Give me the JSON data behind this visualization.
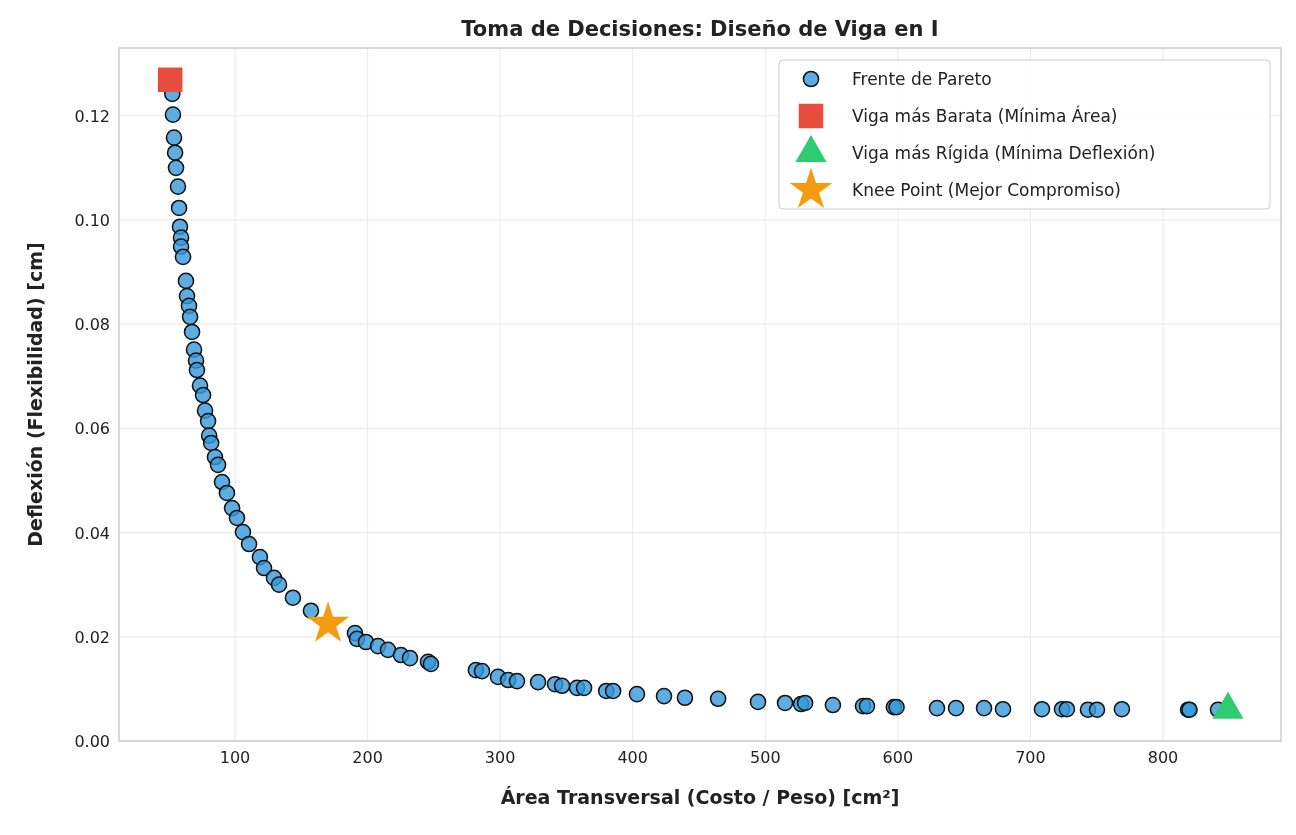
{
  "chart_data": {
    "type": "scatter",
    "title": "Toma de Decisiones: Diseño de Viga en I",
    "xlabel": "Área Transversal (Costo / Peso) [cm²]",
    "ylabel": "Deflexión (Flexibilidad) [cm]",
    "xlim": [
      12.5,
      889
    ],
    "ylim": [
      0,
      0.133
    ],
    "xticks": [
      100,
      200,
      300,
      400,
      500,
      600,
      700,
      800
    ],
    "yticks": [
      {
        "value": 0,
        "label": "0.00"
      },
      {
        "value": 0.02,
        "label": "0.02"
      },
      {
        "value": 0.04,
        "label": "0.04"
      },
      {
        "value": 0.06,
        "label": "0.06"
      },
      {
        "value": 0.08,
        "label": "0.08"
      },
      {
        "value": 0.1,
        "label": "0.10"
      },
      {
        "value": 0.12,
        "label": "0.12"
      }
    ],
    "grid": true,
    "legend": "top right",
    "series": [
      {
        "name": "Frente de Pareto",
        "color": "#3498db",
        "marker": "circle",
        "x": [
          52.7,
          53.2,
          54.0,
          54.8,
          55.5,
          57.0,
          57.8,
          58.5,
          59.3,
          59.3,
          60.8,
          63.0,
          63.8,
          65.3,
          66.1,
          67.6,
          69.1,
          70.6,
          71.3,
          73.6,
          75.9,
          77.4,
          79.7,
          80.5,
          82.0,
          84.9,
          87.2,
          90.2,
          93.9,
          97.8,
          101.5,
          106.0,
          110.6,
          118.8,
          121.9,
          129.4,
          133.2,
          143.7,
          157.3,
          190.5,
          192.0,
          198.8,
          207.9,
          215.4,
          225.2,
          232.0,
          245.6,
          247.8,
          281.7,
          286.3,
          298.4,
          306,
          312.7,
          328.6,
          341.4,
          346.7,
          358,
          363.3,
          380,
          385.2,
          403.2,
          423.6,
          439.4,
          464.4,
          494.5,
          514.9,
          527,
          530,
          551,
          573.7,
          576.7,
          597,
          599,
          629.5,
          643.9,
          665,
          679.3,
          708.7,
          723.8,
          727.5,
          743.4,
          750.2,
          769,
          818.9,
          820,
          841.5
        ],
        "values": [
          0.1242,
          0.1202,
          0.1158,
          0.1129,
          0.11,
          0.1064,
          0.1023,
          0.0987,
          0.0966,
          0.0949,
          0.0929,
          0.0883,
          0.0854,
          0.0835,
          0.0814,
          0.0785,
          0.0751,
          0.073,
          0.0712,
          0.0682,
          0.0664,
          0.0634,
          0.0614,
          0.0586,
          0.0572,
          0.0545,
          0.053,
          0.0497,
          0.0476,
          0.0447,
          0.0428,
          0.0401,
          0.0378,
          0.0353,
          0.0332,
          0.0313,
          0.03,
          0.0275,
          0.025,
          0.0207,
          0.0196,
          0.019,
          0.0182,
          0.0175,
          0.0165,
          0.0159,
          0.0152,
          0.0148,
          0.0136,
          0.0134,
          0.0123,
          0.0117,
          0.0115,
          0.0113,
          0.0109,
          0.0106,
          0.0102,
          0.0102,
          0.0096,
          0.0096,
          0.009,
          0.0086,
          0.0083,
          0.0081,
          0.0075,
          0.0073,
          0.0071,
          0.0073,
          0.0069,
          0.0067,
          0.0067,
          0.0065,
          0.0065,
          0.0063,
          0.0063,
          0.0063,
          0.0061,
          0.0061,
          0.0061,
          0.0061,
          0.006,
          0.006,
          0.0061,
          0.006,
          0.006,
          0.006
        ]
      },
      {
        "name": "Viga más Barata (Mínima Área)",
        "color": "#e74c3c",
        "marker": "square",
        "x": [
          51.1
        ],
        "values": [
          0.1269
        ]
      },
      {
        "name": "Viga más Rígida (Mínima Deflexión)",
        "color": "#2ecc71",
        "marker": "triangle",
        "x": [
          849
        ],
        "values": [
          0.006
        ]
      },
      {
        "name": "Knee Point (Mejor Compromiso)",
        "color": "#f39c12",
        "marker": "star",
        "x": [
          170.2
        ],
        "values": [
          0.0225
        ]
      }
    ]
  }
}
